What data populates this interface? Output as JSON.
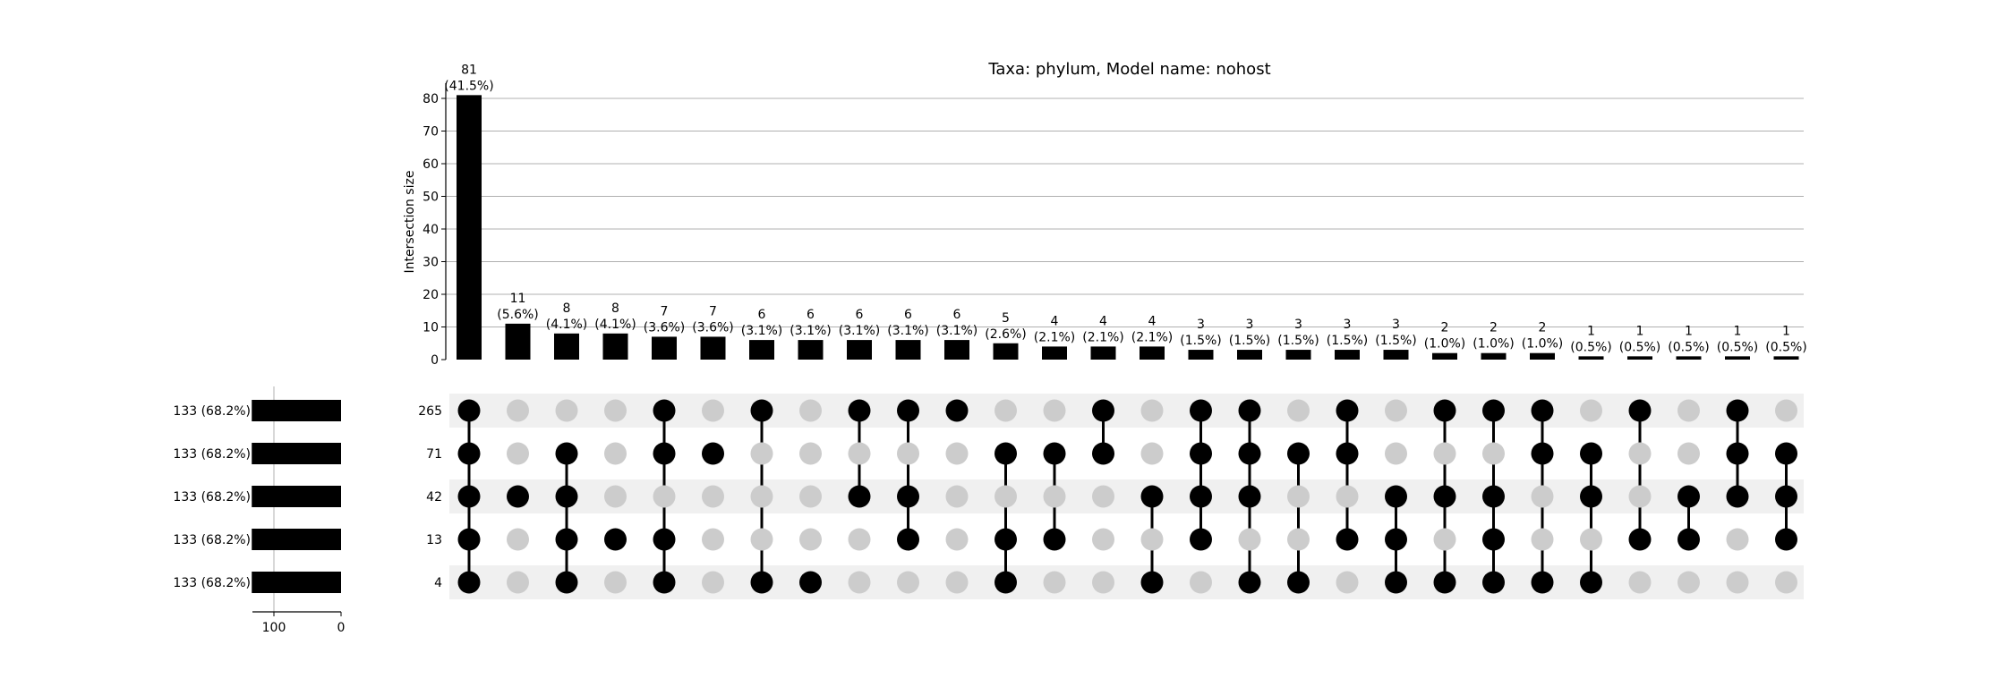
{
  "chart_data": {
    "type": "upset",
    "title": "Taxa: phylum, Model name: nohost",
    "ylabel": "Intersection size",
    "ylim": [
      0,
      85
    ],
    "yticks": [
      0,
      10,
      20,
      30,
      40,
      50,
      60,
      70,
      80
    ],
    "grid": true,
    "sets": [
      {
        "label": "265",
        "size_label": "133 (68.2%)",
        "size": 133
      },
      {
        "label": "71",
        "size_label": "133 (68.2%)",
        "size": 133
      },
      {
        "label": "42",
        "size_label": "133 (68.2%)",
        "size": 133
      },
      {
        "label": "13",
        "size_label": "133 (68.2%)",
        "size": 133
      },
      {
        "label": "4",
        "size_label": "133 (68.2%)",
        "size": 133
      }
    ],
    "set_size_axis": {
      "ticks": [
        100,
        0
      ]
    },
    "intersections": [
      {
        "value": 81,
        "label": "81",
        "pct": "(41.5%)",
        "members": [
          1,
          1,
          1,
          1,
          1
        ]
      },
      {
        "value": 11,
        "label": "11",
        "pct": "(5.6%)",
        "members": [
          0,
          0,
          1,
          0,
          0
        ]
      },
      {
        "value": 8,
        "label": "8",
        "pct": "(4.1%)",
        "members": [
          0,
          1,
          1,
          1,
          1
        ]
      },
      {
        "value": 8,
        "label": "8",
        "pct": "(4.1%)",
        "members": [
          0,
          0,
          0,
          1,
          0
        ]
      },
      {
        "value": 7,
        "label": "7",
        "pct": "(3.6%)",
        "members": [
          1,
          1,
          0,
          1,
          1
        ]
      },
      {
        "value": 7,
        "label": "7",
        "pct": "(3.6%)",
        "members": [
          0,
          1,
          0,
          0,
          0
        ]
      },
      {
        "value": 6,
        "label": "6",
        "pct": "(3.1%)",
        "members": [
          1,
          0,
          0,
          0,
          1
        ]
      },
      {
        "value": 6,
        "label": "6",
        "pct": "(3.1%)",
        "members": [
          0,
          0,
          0,
          0,
          1
        ]
      },
      {
        "value": 6,
        "label": "6",
        "pct": "(3.1%)",
        "members": [
          1,
          0,
          1,
          0,
          0
        ]
      },
      {
        "value": 6,
        "label": "6",
        "pct": "(3.1%)",
        "members": [
          1,
          0,
          1,
          1,
          0
        ]
      },
      {
        "value": 6,
        "label": "6",
        "pct": "(3.1%)",
        "members": [
          1,
          0,
          0,
          0,
          0
        ]
      },
      {
        "value": 5,
        "label": "5",
        "pct": "(2.6%)",
        "members": [
          0,
          1,
          0,
          1,
          1
        ]
      },
      {
        "value": 4,
        "label": "4",
        "pct": "(2.1%)",
        "members": [
          0,
          1,
          0,
          1,
          0
        ]
      },
      {
        "value": 4,
        "label": "4",
        "pct": "(2.1%)",
        "members": [
          1,
          1,
          0,
          0,
          0
        ]
      },
      {
        "value": 4,
        "label": "4",
        "pct": "(2.1%)",
        "members": [
          0,
          0,
          1,
          0,
          1
        ]
      },
      {
        "value": 3,
        "label": "3",
        "pct": "(1.5%)",
        "members": [
          1,
          1,
          1,
          1,
          0
        ]
      },
      {
        "value": 3,
        "label": "3",
        "pct": "(1.5%)",
        "members": [
          1,
          1,
          1,
          0,
          1
        ]
      },
      {
        "value": 3,
        "label": "3",
        "pct": "(1.5%)",
        "members": [
          0,
          1,
          0,
          0,
          1
        ]
      },
      {
        "value": 3,
        "label": "3",
        "pct": "(1.5%)",
        "members": [
          1,
          1,
          0,
          1,
          0
        ]
      },
      {
        "value": 3,
        "label": "3",
        "pct": "(1.5%)",
        "members": [
          0,
          0,
          1,
          1,
          1
        ]
      },
      {
        "value": 2,
        "label": "2",
        "pct": "(1.0%)",
        "members": [
          1,
          0,
          1,
          0,
          1
        ]
      },
      {
        "value": 2,
        "label": "2",
        "pct": "(1.0%)",
        "members": [
          1,
          0,
          1,
          1,
          1
        ]
      },
      {
        "value": 2,
        "label": "2",
        "pct": "(1.0%)",
        "members": [
          1,
          1,
          0,
          0,
          1
        ]
      },
      {
        "value": 1,
        "label": "1",
        "pct": "(0.5%)",
        "members": [
          0,
          1,
          1,
          0,
          1
        ]
      },
      {
        "value": 1,
        "label": "1",
        "pct": "(0.5%)",
        "members": [
          1,
          0,
          0,
          1,
          0
        ]
      },
      {
        "value": 1,
        "label": "1",
        "pct": "(0.5%)",
        "members": [
          0,
          0,
          1,
          1,
          0
        ]
      },
      {
        "value": 1,
        "label": "1",
        "pct": "(0.5%)",
        "members": [
          1,
          1,
          1,
          0,
          0
        ]
      },
      {
        "value": 1,
        "label": "1",
        "pct": "(0.5%)",
        "members": [
          0,
          1,
          1,
          1,
          0
        ]
      }
    ],
    "colors": {
      "bar": "#000000",
      "dot_active": "#000000",
      "dot_inactive": "#cccccc",
      "row_shade": "#f0f0f0",
      "grid": "#b0b0b0"
    }
  }
}
